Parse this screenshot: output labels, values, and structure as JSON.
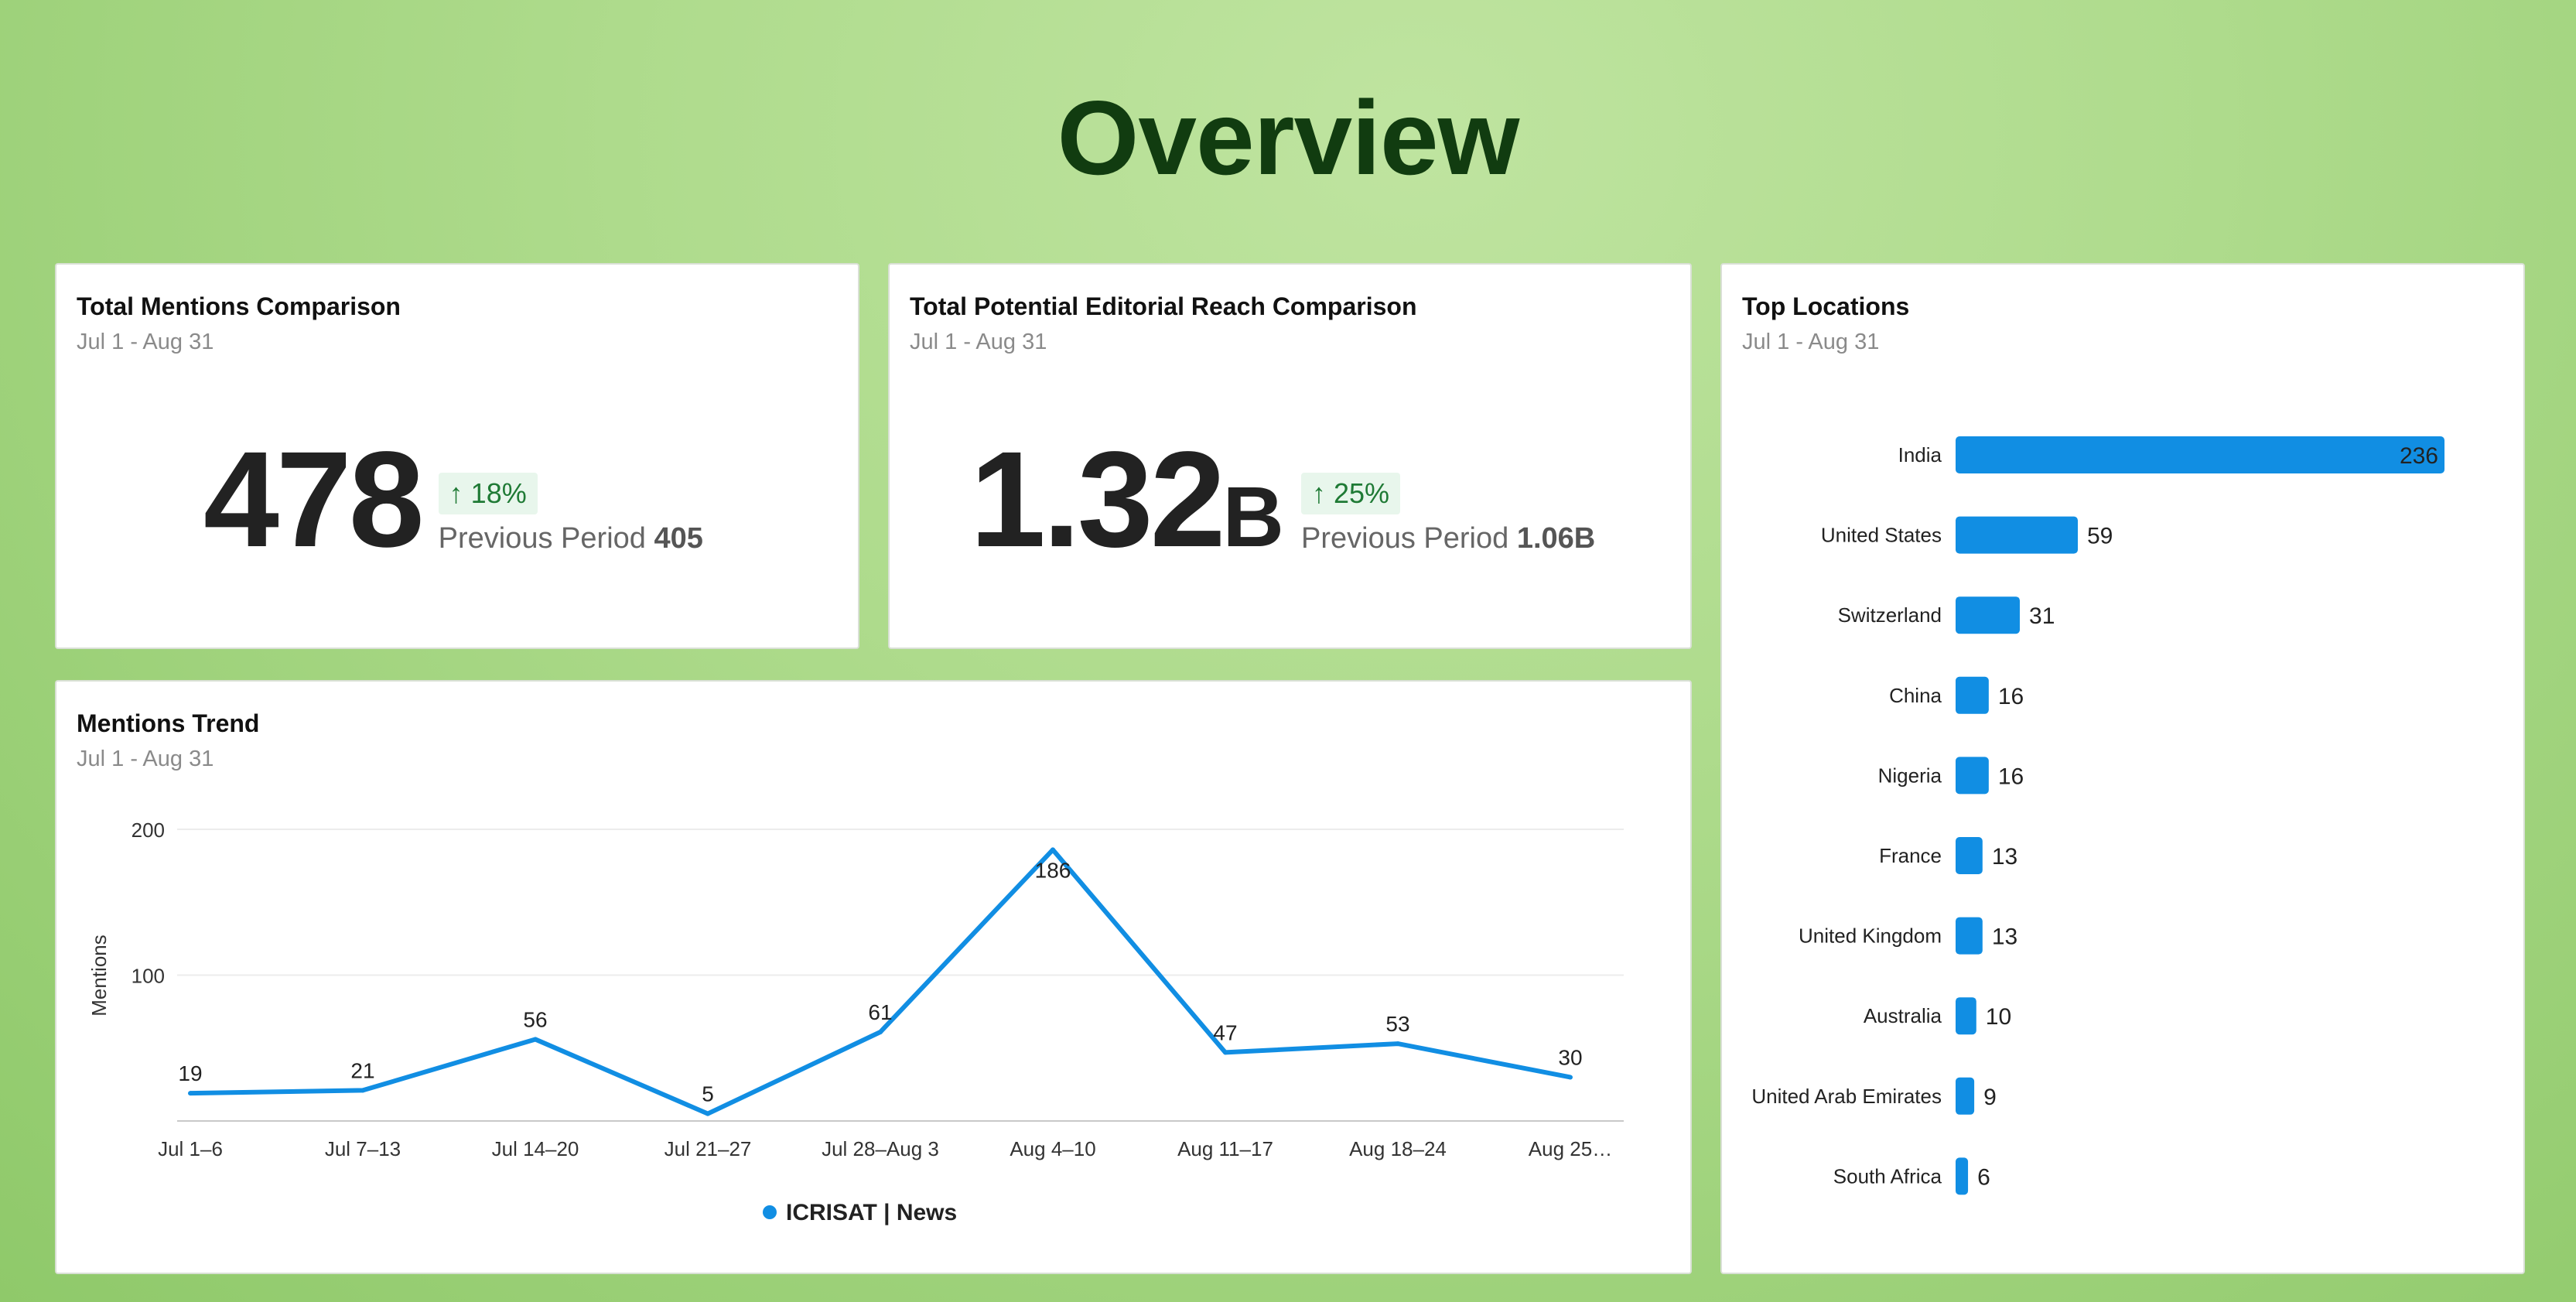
{
  "page": {
    "title": "Overview"
  },
  "mentions_card": {
    "title": "Total Mentions Comparison",
    "subtitle": "Jul 1 - Aug 31",
    "value": "478",
    "change_arrow": "↑",
    "change": "18%",
    "previous_label": "Previous Period",
    "previous_value": "405"
  },
  "reach_card": {
    "title": "Total Potential Editorial Reach Comparison",
    "subtitle": "Jul 1 - Aug 31",
    "value": "1.32",
    "unit": "B",
    "change_arrow": "↑",
    "change": "25%",
    "previous_label": "Previous Period",
    "previous_value": "1.06B"
  },
  "locations_card": {
    "title": "Top Locations",
    "subtitle": "Jul 1 - Aug 31"
  },
  "trend_card": {
    "title": "Mentions Trend",
    "subtitle": "Jul 1 - Aug 31"
  },
  "colors": {
    "accent": "#118ee3",
    "title": "#113c10",
    "badge_bg": "#e8f6ec",
    "badge_text": "#1f7a35"
  },
  "chart_data": [
    {
      "type": "line",
      "ylabel": "Mentions",
      "xlabel": "",
      "ylim": [
        0,
        200
      ],
      "yticks": [
        100,
        200
      ],
      "categories": [
        "Jul 1–6",
        "Jul 7–13",
        "Jul 14–20",
        "Jul 21–27",
        "Jul 28–Aug 3",
        "Aug 4–10",
        "Aug 11–17",
        "Aug 18–24",
        "Aug 25…"
      ],
      "series": [
        {
          "name": "ICRISAT | News",
          "color": "#118ee3",
          "values": [
            19,
            21,
            56,
            5,
            61,
            186,
            47,
            53,
            30
          ]
        }
      ],
      "grid": true,
      "legend": "bottom-center"
    },
    {
      "type": "bar",
      "orientation": "horizontal",
      "title": "Top Locations",
      "categories": [
        "India",
        "United States",
        "Switzerland",
        "China",
        "Nigeria",
        "France",
        "United Kingdom",
        "Australia",
        "United Arab Emirates",
        "South Africa"
      ],
      "values": [
        236,
        59,
        31,
        16,
        16,
        13,
        13,
        10,
        9,
        6
      ],
      "color": "#118ee3"
    }
  ]
}
